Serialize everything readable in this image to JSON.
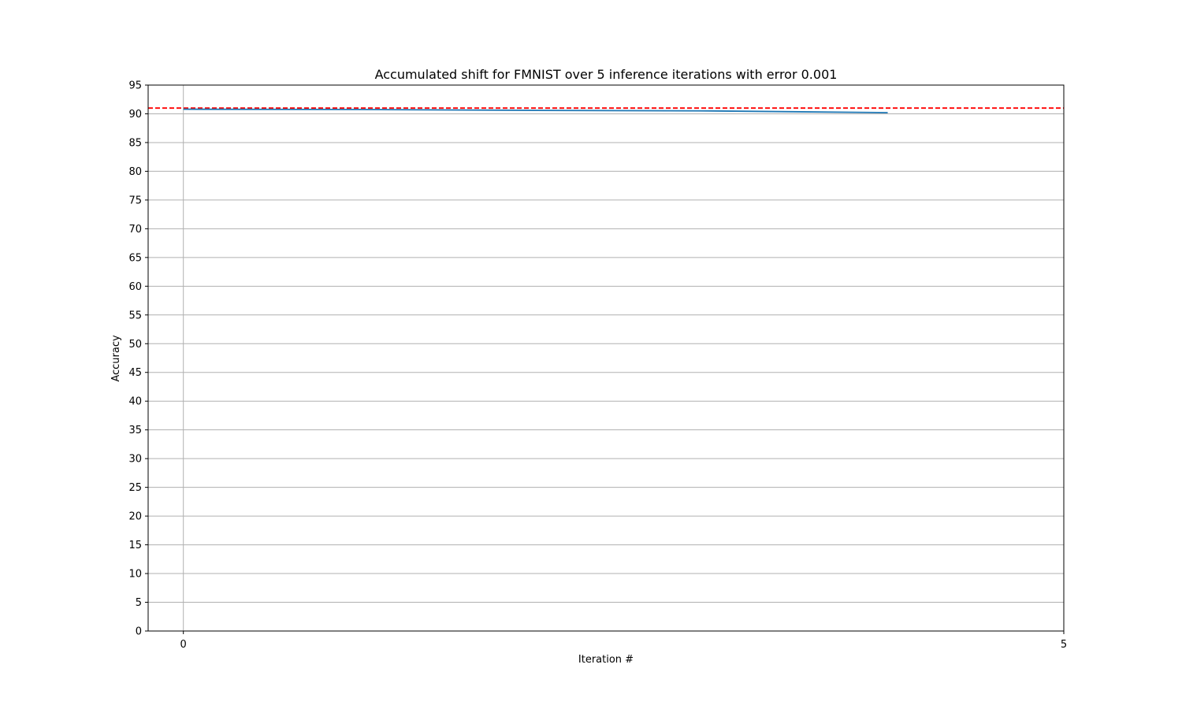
{
  "chart_data": {
    "type": "line",
    "title": "Accumulated shift for FMNIST over 5 inference iterations with error 0.001",
    "xlabel": "Iteration #",
    "ylabel": "Accuracy",
    "xlim": [
      -0.2,
      5
    ],
    "ylim": [
      0,
      95
    ],
    "xticks": [
      0,
      5
    ],
    "yticks": [
      0,
      5,
      10,
      15,
      20,
      25,
      30,
      35,
      40,
      45,
      50,
      55,
      60,
      65,
      70,
      75,
      80,
      85,
      90,
      95
    ],
    "grid": true,
    "series": [
      {
        "x": [
          0,
          1,
          2,
          3,
          4
        ],
        "y": [
          90.8,
          90.75,
          90.6,
          90.5,
          90.2
        ],
        "color": "#1f77b4"
      }
    ],
    "reference_lines": [
      {
        "orientation": "horizontal",
        "y": 91.0,
        "color": "#ff0000",
        "style": "dashed"
      }
    ]
  }
}
